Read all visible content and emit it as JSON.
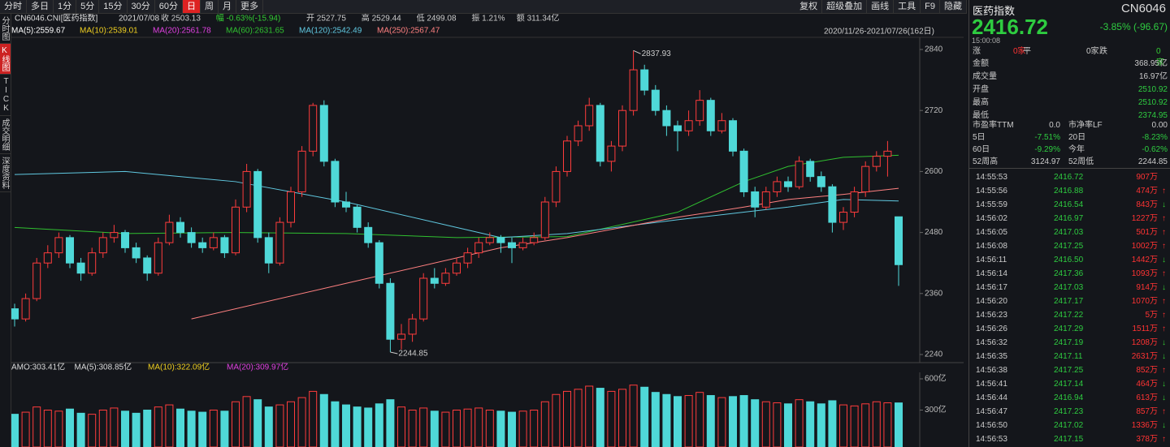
{
  "toolbar": {
    "periods": [
      "分时",
      "多日",
      "1分",
      "5分",
      "15分",
      "30分",
      "60分",
      "日",
      "周",
      "月",
      "更多"
    ],
    "active": 7,
    "tools": [
      "复权",
      "超级叠加",
      "画线",
      "工具",
      "F9",
      "隐藏"
    ]
  },
  "side_tabs": [
    "分时图",
    "K线图",
    "TICK",
    "成交明细",
    "深度资料"
  ],
  "side_active": 1,
  "info": {
    "name": "CN6046.CNI[医药指数]",
    "date": "2021/07/08",
    "items": [
      "收 2503.13",
      "幅 -0.63%(-15.94)",
      "开 2527.75",
      "高 2529.44",
      "低 2499.08",
      "振 1.21%",
      "额 311.34亿"
    ]
  },
  "range_label": "2020/11/26-2021/07/26(162日)",
  "chart": {
    "type": "candlestick",
    "ylim": [
      2240,
      2840
    ],
    "yticks": [
      2240,
      2360,
      2480,
      2600,
      2720,
      2840
    ],
    "up_color": "#ff3c3c",
    "down_color": "#4fd8d8",
    "ma_legend": [
      {
        "label": "MA(5):2559.67",
        "color": "#ffffff"
      },
      {
        "label": "MA(10):2539.01",
        "color": "#f0d020"
      },
      {
        "label": "MA(20):2561.78",
        "color": "#e040e0"
      },
      {
        "label": "MA(60):2631.65",
        "color": "#30c030"
      },
      {
        "label": "MA(120):2542.49",
        "color": "#60c8e0"
      },
      {
        "label": "MA(250):2567.47",
        "color": "#ff8080"
      }
    ],
    "ma_lines": [
      {
        "color": "#30c030",
        "x": [
          0,
          10,
          20,
          30,
          40,
          50,
          60,
          66,
          70,
          75,
          80
        ],
        "values": [
          2490,
          2478,
          2480,
          2478,
          2470,
          2472,
          2520,
          2580,
          2610,
          2628,
          2632
        ]
      },
      {
        "color": "#60c8e0",
        "x": [
          0,
          10,
          20,
          30,
          40,
          44,
          50,
          60,
          66,
          70,
          75,
          80
        ],
        "values": [
          2594,
          2600,
          2580,
          2540,
          2490,
          2470,
          2478,
          2505,
          2520,
          2530,
          2545,
          2542
        ]
      },
      {
        "color": "#ff8080",
        "x": [
          16,
          30,
          44,
          50,
          60,
          66,
          70,
          75,
          80
        ],
        "values": [
          2310,
          2380,
          2450,
          2470,
          2510,
          2530,
          2545,
          2555,
          2567
        ]
      }
    ],
    "candles": [
      [
        2330,
        2340,
        2295,
        2310
      ],
      [
        2310,
        2360,
        2305,
        2350
      ],
      [
        2350,
        2430,
        2345,
        2420
      ],
      [
        2420,
        2455,
        2410,
        2440
      ],
      [
        2440,
        2480,
        2430,
        2470
      ],
      [
        2470,
        2475,
        2410,
        2420
      ],
      [
        2420,
        2430,
        2385,
        2400
      ],
      [
        2400,
        2450,
        2395,
        2440
      ],
      [
        2440,
        2480,
        2430,
        2470
      ],
      [
        2470,
        2495,
        2460,
        2480
      ],
      [
        2480,
        2485,
        2440,
        2450
      ],
      [
        2450,
        2460,
        2420,
        2430
      ],
      [
        2430,
        2435,
        2385,
        2400
      ],
      [
        2400,
        2470,
        2395,
        2460
      ],
      [
        2460,
        2515,
        2455,
        2500
      ],
      [
        2500,
        2510,
        2470,
        2480
      ],
      [
        2480,
        2490,
        2450,
        2460
      ],
      [
        2460,
        2470,
        2440,
        2450
      ],
      [
        2450,
        2480,
        2445,
        2470
      ],
      [
        2470,
        2475,
        2430,
        2440
      ],
      [
        2440,
        2545,
        2435,
        2530
      ],
      [
        2530,
        2615,
        2520,
        2600
      ],
      [
        2600,
        2605,
        2460,
        2470
      ],
      [
        2470,
        2480,
        2400,
        2420
      ],
      [
        2420,
        2510,
        2415,
        2500
      ],
      [
        2500,
        2570,
        2490,
        2560
      ],
      [
        2560,
        2650,
        2550,
        2640
      ],
      [
        2640,
        2735,
        2630,
        2730
      ],
      [
        2730,
        2740,
        2610,
        2620
      ],
      [
        2620,
        2625,
        2530,
        2540
      ],
      [
        2540,
        2560,
        2520,
        2530
      ],
      [
        2530,
        2535,
        2480,
        2490
      ],
      [
        2490,
        2500,
        2450,
        2460
      ],
      [
        2460,
        2465,
        2370,
        2380
      ],
      [
        2380,
        2390,
        2244.85,
        2270
      ],
      [
        2270,
        2300,
        2250,
        2280
      ],
      [
        2280,
        2320,
        2265,
        2310
      ],
      [
        2310,
        2400,
        2305,
        2390
      ],
      [
        2390,
        2410,
        2370,
        2380
      ],
      [
        2380,
        2410,
        2375,
        2400
      ],
      [
        2400,
        2430,
        2395,
        2420
      ],
      [
        2420,
        2450,
        2410,
        2440
      ],
      [
        2440,
        2470,
        2430,
        2460
      ],
      [
        2460,
        2480,
        2455,
        2470
      ],
      [
        2470,
        2475,
        2440,
        2460
      ],
      [
        2460,
        2470,
        2420,
        2450
      ],
      [
        2450,
        2470,
        2445,
        2460
      ],
      [
        2460,
        2480,
        2455,
        2470
      ],
      [
        2470,
        2550,
        2465,
        2540
      ],
      [
        2540,
        2610,
        2530,
        2600
      ],
      [
        2600,
        2670,
        2590,
        2660
      ],
      [
        2660,
        2700,
        2650,
        2690
      ],
      [
        2690,
        2745,
        2680,
        2730
      ],
      [
        2730,
        2735,
        2610,
        2620
      ],
      [
        2620,
        2660,
        2600,
        2650
      ],
      [
        2650,
        2730,
        2640,
        2720
      ],
      [
        2720,
        2837.93,
        2710,
        2800
      ],
      [
        2800,
        2810,
        2750,
        2760
      ],
      [
        2760,
        2770,
        2710,
        2720
      ],
      [
        2720,
        2730,
        2670,
        2690
      ],
      [
        2690,
        2700,
        2640,
        2680
      ],
      [
        2680,
        2720,
        2670,
        2700
      ],
      [
        2700,
        2760,
        2690,
        2740
      ],
      [
        2740,
        2745,
        2670,
        2680
      ],
      [
        2680,
        2715,
        2675,
        2700
      ],
      [
        2700,
        2705,
        2630,
        2640
      ],
      [
        2640,
        2645,
        2550,
        2560
      ],
      [
        2560,
        2570,
        2510,
        2530
      ],
      [
        2530,
        2570,
        2525,
        2560
      ],
      [
        2560,
        2590,
        2550,
        2580
      ],
      [
        2580,
        2590,
        2560,
        2570
      ],
      [
        2570,
        2630,
        2565,
        2620
      ],
      [
        2620,
        2625,
        2580,
        2590
      ],
      [
        2590,
        2600,
        2560,
        2570
      ],
      [
        2570,
        2575,
        2480,
        2500
      ],
      [
        2500,
        2530,
        2485,
        2520
      ],
      [
        2520,
        2570,
        2510,
        2560
      ],
      [
        2560,
        2620,
        2550,
        2610
      ],
      [
        2610,
        2640,
        2600,
        2630
      ],
      [
        2630,
        2660,
        2590,
        2640
      ],
      [
        2510.92,
        2510.92,
        2374.95,
        2416.72
      ]
    ],
    "high_mark": 56,
    "low_mark": 34
  },
  "volume": {
    "legend": [
      {
        "label": "AMO:303.41亿",
        "color": "#dddddd"
      },
      {
        "label": "MA(5):308.85亿",
        "color": "#dddddd"
      },
      {
        "label": "MA(10):322.09亿",
        "color": "#f0d020"
      },
      {
        "label": "MA(20):309.97亿",
        "color": "#e040e0"
      }
    ],
    "ylim": [
      0,
      600
    ],
    "yticks": [
      {
        "value": 600,
        "label": "600亿"
      },
      {
        "value": 300,
        "label": "300亿"
      }
    ],
    "values": [
      260,
      280,
      330,
      300,
      290,
      310,
      270,
      260,
      300,
      320,
      290,
      270,
      300,
      330,
      350,
      310,
      290,
      280,
      300,
      290,
      380,
      430,
      400,
      330,
      350,
      380,
      420,
      480,
      450,
      380,
      350,
      330,
      320,
      360,
      400,
      330,
      300,
      320,
      290,
      280,
      300,
      310,
      320,
      300,
      290,
      280,
      290,
      300,
      380,
      450,
      480,
      500,
      530,
      510,
      480,
      500,
      540,
      520,
      470,
      450,
      430,
      440,
      470,
      440,
      420,
      430,
      440,
      400,
      380,
      370,
      360,
      400,
      380,
      360,
      390,
      350,
      340,
      360,
      380,
      370,
      368.95
    ]
  },
  "panel": {
    "name": "医药指数",
    "code": "CN6046",
    "price": "2416.72",
    "change": "-3.85% (-96.67)",
    "time": "15:00:08",
    "breadth": [
      "涨",
      "0家",
      "平",
      "0家",
      "跌",
      "0家"
    ],
    "stats": [
      [
        "金额",
        "368.95亿"
      ],
      [
        "成交量",
        "16.97亿"
      ],
      [
        "开盘",
        "2510.92"
      ],
      [
        "最高",
        "2510.92"
      ],
      [
        "最低",
        "2374.95"
      ]
    ],
    "pairs": [
      [
        "市盈率TTM",
        "0.0",
        "市净率LF",
        "0.00"
      ],
      [
        "5日",
        "-7.51%",
        "20日",
        "-8.23%"
      ],
      [
        "60日",
        "-9.29%",
        "今年",
        "-0.62%"
      ],
      [
        "52周高",
        "3124.97",
        "52周低",
        "2244.85"
      ]
    ],
    "trades": [
      [
        "14:55:53",
        "2416.72",
        "907万",
        null
      ],
      [
        "14:55:56",
        "2416.88",
        "474万",
        true
      ],
      [
        "14:55:59",
        "2416.54",
        "843万",
        false
      ],
      [
        "14:56:02",
        "2416.97",
        "1227万",
        true
      ],
      [
        "14:56:05",
        "2417.03",
        "501万",
        true
      ],
      [
        "14:56:08",
        "2417.25",
        "1002万",
        true
      ],
      [
        "14:56:11",
        "2416.50",
        "1442万",
        false
      ],
      [
        "14:56:14",
        "2417.36",
        "1093万",
        true
      ],
      [
        "14:56:17",
        "2417.03",
        "914万",
        false
      ],
      [
        "14:56:20",
        "2417.17",
        "1070万",
        true
      ],
      [
        "14:56:23",
        "2417.22",
        "5万",
        true
      ],
      [
        "14:56:26",
        "2417.29",
        "1511万",
        true
      ],
      [
        "14:56:32",
        "2417.19",
        "1208万",
        false
      ],
      [
        "14:56:35",
        "2417.11",
        "2631万",
        false
      ],
      [
        "14:56:38",
        "2417.25",
        "852万",
        true
      ],
      [
        "14:56:41",
        "2417.14",
        "464万",
        false
      ],
      [
        "14:56:44",
        "2416.94",
        "613万",
        false
      ],
      [
        "14:56:47",
        "2417.23",
        "857万",
        true
      ],
      [
        "14:56:50",
        "2417.02",
        "1336万",
        false
      ],
      [
        "14:56:53",
        "2417.15",
        "378万",
        true
      ]
    ]
  }
}
